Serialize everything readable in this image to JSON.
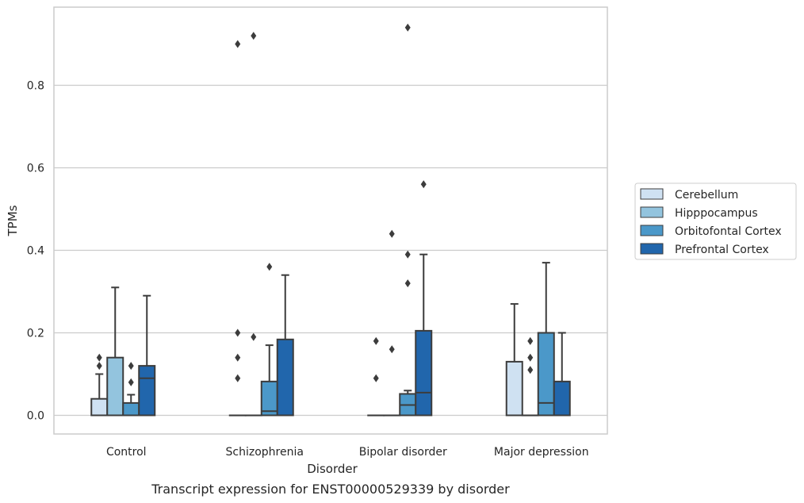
{
  "chart_data": {
    "type": "box",
    "caption": "Transcript expression for ENST00000529339 by disorder",
    "xlabel": "Disorder",
    "ylabel": "TPMs",
    "ylim": [
      -0.045,
      0.99
    ],
    "yticks": [
      0.0,
      0.2,
      0.4,
      0.6,
      0.8
    ],
    "ytick_labels": [
      "0.0",
      "0.2",
      "0.4",
      "0.6",
      "0.8"
    ],
    "grid": "horizontal",
    "legend_position": "right",
    "categories": [
      "Control",
      "Schizophrenia",
      "Bipolar disorder",
      "Major depression"
    ],
    "series": [
      {
        "name": "Cerebellum",
        "color": "#cfe1f2",
        "boxes": [
          {
            "q1": 0.0,
            "median": 0.0,
            "q3": 0.04,
            "whislo": 0.0,
            "whishi": 0.1,
            "fliers": [
              0.12,
              0.14
            ]
          },
          {
            "q1": 0.0,
            "median": 0.0,
            "q3": 0.0,
            "whislo": 0.0,
            "whishi": 0.0,
            "fliers": [
              0.09,
              0.14,
              0.2,
              0.9
            ]
          },
          {
            "q1": 0.0,
            "median": 0.0,
            "q3": 0.0,
            "whislo": 0.0,
            "whishi": 0.0,
            "fliers": [
              0.09,
              0.18
            ]
          },
          {
            "q1": 0.0,
            "median": 0.0,
            "q3": 0.13,
            "whislo": 0.0,
            "whishi": 0.27,
            "fliers": []
          }
        ]
      },
      {
        "name": "Hipppocampus",
        "color": "#93c4de",
        "boxes": [
          {
            "q1": 0.0,
            "median": 0.0,
            "q3": 0.14,
            "whislo": 0.0,
            "whishi": 0.31,
            "fliers": []
          },
          {
            "q1": 0.0,
            "median": 0.0,
            "q3": 0.0,
            "whislo": 0.0,
            "whishi": 0.0,
            "fliers": [
              0.19,
              0.92
            ]
          },
          {
            "q1": 0.0,
            "median": 0.0,
            "q3": 0.0,
            "whislo": 0.0,
            "whishi": 0.0,
            "fliers": [
              0.16,
              0.44
            ]
          },
          {
            "q1": 0.0,
            "median": 0.0,
            "q3": 0.0,
            "whislo": 0.0,
            "whishi": 0.0,
            "fliers": [
              0.11,
              0.14,
              0.18
            ]
          }
        ]
      },
      {
        "name": "Orbitofontal Cortex",
        "color": "#4b98c9",
        "boxes": [
          {
            "q1": 0.0,
            "median": 0.0,
            "q3": 0.03,
            "whislo": 0.0,
            "whishi": 0.05,
            "fliers": [
              0.08,
              0.12
            ]
          },
          {
            "q1": 0.0,
            "median": 0.01,
            "q3": 0.082,
            "whislo": 0.0,
            "whishi": 0.17,
            "fliers": [
              0.36
            ]
          },
          {
            "q1": 0.0,
            "median": 0.025,
            "q3": 0.052,
            "whislo": 0.0,
            "whishi": 0.06,
            "fliers": [
              0.32,
              0.39,
              0.94
            ]
          },
          {
            "q1": 0.0,
            "median": 0.03,
            "q3": 0.2,
            "whislo": 0.0,
            "whishi": 0.37,
            "fliers": []
          }
        ]
      },
      {
        "name": "Prefrontal Cortex",
        "color": "#2166ac",
        "boxes": [
          {
            "q1": 0.0,
            "median": 0.09,
            "q3": 0.12,
            "whislo": 0.0,
            "whishi": 0.29,
            "fliers": []
          },
          {
            "q1": 0.0,
            "median": 0.0,
            "q3": 0.184,
            "whislo": 0.0,
            "whishi": 0.34,
            "fliers": []
          },
          {
            "q1": 0.0,
            "median": 0.055,
            "q3": 0.205,
            "whislo": 0.0,
            "whishi": 0.39,
            "fliers": [
              0.56
            ]
          },
          {
            "q1": 0.0,
            "median": 0.0,
            "q3": 0.082,
            "whislo": 0.0,
            "whishi": 0.2,
            "fliers": []
          }
        ]
      }
    ]
  }
}
